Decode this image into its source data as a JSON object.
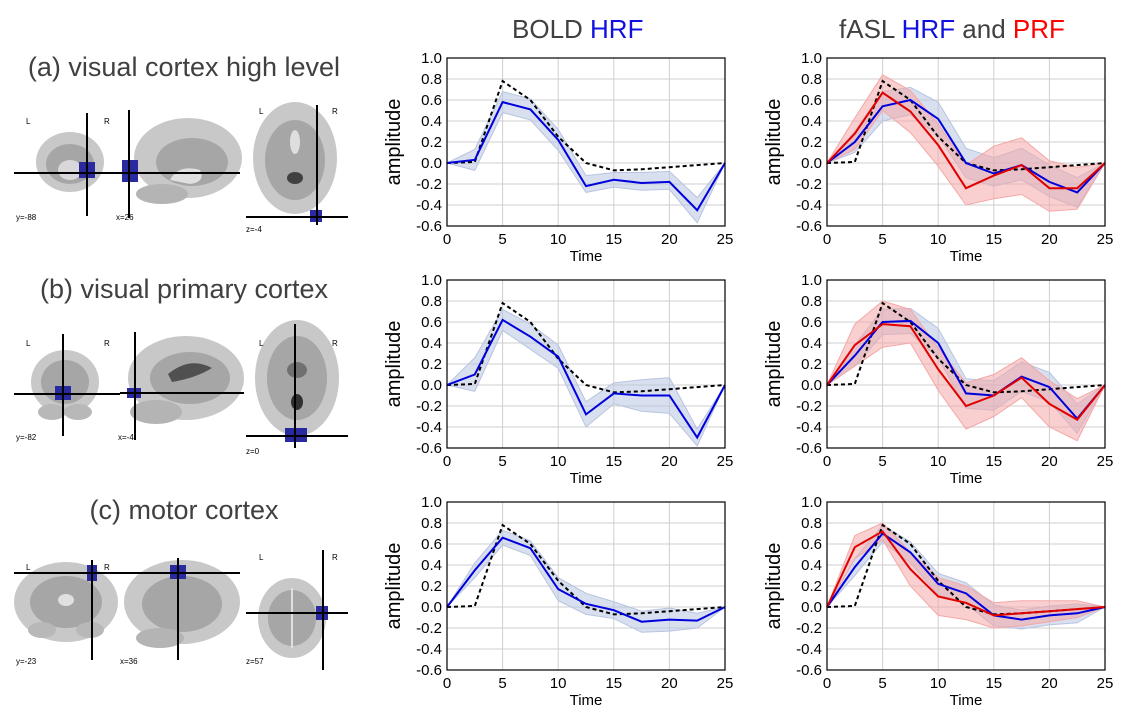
{
  "columns": {
    "bold": {
      "prefix": "BOLD ",
      "hrf": "HRF"
    },
    "fasl": {
      "prefix": "fASL ",
      "hrf": "HRF",
      "mid": " and ",
      "prf": "PRF"
    }
  },
  "colors": {
    "hrf": "#0000dd",
    "prf": "#e00000",
    "hrf_band": "#b8c4e0",
    "prf_band": "#f4a8a8",
    "canonical": "#000000",
    "roi": "#2a2aa0"
  },
  "rows": [
    {
      "label": "(a) visual cortex high level",
      "brain": {
        "view_labels": [
          "L",
          "R",
          "L",
          "R"
        ],
        "coords": [
          "y=-88",
          "x=26",
          "z=-4"
        ]
      }
    },
    {
      "label": "(b) visual primary cortex",
      "brain": {
        "view_labels": [
          "L",
          "R",
          "L",
          "R"
        ],
        "coords": [
          "y=-82",
          "x=-4",
          "z=0"
        ]
      }
    },
    {
      "label": "(c) motor cortex",
      "brain": {
        "view_labels": [
          "L",
          "R",
          "L",
          "R"
        ],
        "coords": [
          "y=-23",
          "x=36",
          "z=57"
        ]
      }
    }
  ],
  "chart_data": [
    {
      "id": "a-bold",
      "type": "line",
      "xlabel": "Time",
      "ylabel": "amplitude",
      "xlim": [
        0,
        25
      ],
      "ylim": [
        -0.6,
        1.0
      ],
      "xticks": [
        "0",
        "5",
        "10",
        "15",
        "20",
        "25"
      ],
      "yticks": [
        "-0.6",
        "-0.4",
        "-0.2",
        "0.0",
        "0.2",
        "0.4",
        "0.6",
        "0.8",
        "1.0"
      ],
      "grid": true,
      "x": [
        0,
        2.5,
        5,
        7.5,
        10,
        12.5,
        15,
        17.5,
        20,
        22.5,
        25
      ],
      "canonical": [
        0,
        0.01,
        0.78,
        0.6,
        0.25,
        0.0,
        -0.07,
        -0.06,
        -0.04,
        -0.02,
        0.0
      ],
      "series": [
        {
          "color_key": "hrf",
          "values": [
            0,
            0.03,
            0.58,
            0.51,
            0.22,
            -0.22,
            -0.16,
            -0.19,
            -0.18,
            -0.45,
            0.0
          ],
          "upper": [
            0,
            0.13,
            0.68,
            0.61,
            0.32,
            -0.12,
            -0.09,
            -0.09,
            -0.08,
            -0.33,
            0.0
          ],
          "lower": [
            0,
            -0.07,
            0.48,
            0.41,
            0.12,
            -0.28,
            -0.23,
            -0.26,
            -0.25,
            -0.57,
            0.0
          ]
        }
      ]
    },
    {
      "id": "a-fasl",
      "type": "line",
      "xlabel": "Time",
      "ylabel": "amplitude",
      "xlim": [
        0,
        25
      ],
      "ylim": [
        -0.6,
        1.0
      ],
      "xticks": [
        "0",
        "5",
        "10",
        "15",
        "20",
        "25"
      ],
      "yticks": [
        "-0.6",
        "-0.4",
        "-0.2",
        "0.0",
        "0.2",
        "0.4",
        "0.6",
        "0.8",
        "1.0"
      ],
      "grid": true,
      "x": [
        0,
        2.5,
        5,
        7.5,
        10,
        12.5,
        15,
        17.5,
        20,
        22.5,
        25
      ],
      "canonical": [
        0,
        0.01,
        0.78,
        0.6,
        0.25,
        0.0,
        -0.07,
        -0.06,
        -0.04,
        -0.02,
        0.0
      ],
      "series": [
        {
          "color_key": "hrf",
          "values": [
            0,
            0.2,
            0.54,
            0.6,
            0.42,
            0.0,
            -0.1,
            -0.02,
            -0.18,
            -0.28,
            0.0
          ],
          "upper": [
            0,
            0.3,
            0.68,
            0.72,
            0.58,
            0.14,
            0.05,
            0.14,
            -0.02,
            -0.14,
            0.0
          ],
          "lower": [
            0,
            0.1,
            0.4,
            0.46,
            0.26,
            -0.14,
            -0.22,
            -0.16,
            -0.32,
            -0.42,
            0.0
          ]
        },
        {
          "color_key": "prf",
          "values": [
            0,
            0.28,
            0.67,
            0.49,
            0.17,
            -0.24,
            -0.12,
            -0.02,
            -0.24,
            -0.24,
            0.0
          ],
          "upper": [
            0,
            0.43,
            0.84,
            0.69,
            0.37,
            -0.02,
            0.16,
            0.24,
            0.02,
            -0.04,
            0.0
          ],
          "lower": [
            0,
            0.13,
            0.5,
            0.29,
            -0.03,
            -0.4,
            -0.34,
            -0.3,
            -0.46,
            -0.44,
            0.0
          ]
        }
      ]
    },
    {
      "id": "b-bold",
      "type": "line",
      "xlabel": "Time",
      "ylabel": "amplitude",
      "xlim": [
        0,
        25
      ],
      "ylim": [
        -0.6,
        1.0
      ],
      "xticks": [
        "0",
        "5",
        "10",
        "15",
        "20",
        "25"
      ],
      "yticks": [
        "-0.6",
        "-0.4",
        "-0.2",
        "0.0",
        "0.2",
        "0.4",
        "0.6",
        "0.8",
        "1.0"
      ],
      "grid": true,
      "x": [
        0,
        2.5,
        5,
        7.5,
        10,
        12.5,
        15,
        17.5,
        20,
        22.5,
        25
      ],
      "canonical": [
        0,
        0.01,
        0.78,
        0.6,
        0.25,
        0.0,
        -0.07,
        -0.06,
        -0.04,
        -0.02,
        0.0
      ],
      "series": [
        {
          "color_key": "hrf",
          "values": [
            0,
            0.1,
            0.62,
            0.46,
            0.27,
            -0.28,
            -0.08,
            -0.1,
            -0.1,
            -0.5,
            0.0
          ],
          "upper": [
            0,
            0.26,
            0.72,
            0.58,
            0.38,
            -0.16,
            0.02,
            0.05,
            0.07,
            -0.42,
            0.0
          ],
          "lower": [
            0,
            -0.06,
            0.52,
            0.34,
            0.16,
            -0.4,
            -0.18,
            -0.25,
            -0.27,
            -0.58,
            0.0
          ]
        }
      ]
    },
    {
      "id": "b-fasl",
      "type": "line",
      "xlabel": "Time",
      "ylabel": "amplitude",
      "xlim": [
        0,
        25
      ],
      "ylim": [
        -0.6,
        1.0
      ],
      "xticks": [
        "0",
        "5",
        "10",
        "15",
        "20",
        "25"
      ],
      "yticks": [
        "-0.6",
        "-0.4",
        "-0.2",
        "0.0",
        "0.2",
        "0.4",
        "0.6",
        "0.8",
        "1.0"
      ],
      "grid": true,
      "x": [
        0,
        2.5,
        5,
        7.5,
        10,
        12.5,
        15,
        17.5,
        20,
        22.5,
        25
      ],
      "canonical": [
        0,
        0.01,
        0.78,
        0.6,
        0.25,
        0.0,
        -0.07,
        -0.06,
        -0.04,
        -0.02,
        0.0
      ],
      "series": [
        {
          "color_key": "hrf",
          "values": [
            0,
            0.28,
            0.6,
            0.61,
            0.4,
            -0.08,
            -0.1,
            0.08,
            -0.02,
            -0.32,
            0.0
          ],
          "upper": [
            0,
            0.38,
            0.72,
            0.73,
            0.54,
            0.06,
            0.04,
            0.22,
            0.12,
            -0.18,
            0.0
          ],
          "lower": [
            0,
            0.18,
            0.48,
            0.49,
            0.26,
            -0.22,
            -0.24,
            -0.06,
            -0.16,
            -0.46,
            0.0
          ]
        },
        {
          "color_key": "prf",
          "values": [
            0,
            0.38,
            0.58,
            0.56,
            0.15,
            -0.2,
            -0.1,
            0.07,
            -0.18,
            -0.33,
            0.0
          ],
          "upper": [
            0,
            0.58,
            0.8,
            0.72,
            0.35,
            0.02,
            0.1,
            0.26,
            0.04,
            -0.13,
            0.0
          ],
          "lower": [
            0,
            0.18,
            0.36,
            0.4,
            -0.05,
            -0.42,
            -0.3,
            -0.12,
            -0.4,
            -0.53,
            0.0
          ]
        }
      ]
    },
    {
      "id": "c-bold",
      "type": "line",
      "xlabel": "Time",
      "ylabel": "amplitude",
      "xlim": [
        0,
        25
      ],
      "ylim": [
        -0.6,
        1.0
      ],
      "xticks": [
        "0",
        "5",
        "10",
        "15",
        "20",
        "25"
      ],
      "yticks": [
        "-0.6",
        "-0.4",
        "-0.2",
        "0.0",
        "0.2",
        "0.4",
        "0.6",
        "0.8",
        "1.0"
      ],
      "grid": true,
      "x": [
        0,
        2.5,
        5,
        7.5,
        10,
        12.5,
        15,
        17.5,
        20,
        22.5,
        25
      ],
      "canonical": [
        0,
        0.01,
        0.78,
        0.6,
        0.25,
        0.0,
        -0.07,
        -0.06,
        -0.04,
        -0.02,
        0.0
      ],
      "series": [
        {
          "color_key": "hrf",
          "values": [
            0,
            0.35,
            0.66,
            0.56,
            0.17,
            0.03,
            -0.03,
            -0.14,
            -0.12,
            -0.13,
            0.0
          ],
          "upper": [
            0,
            0.42,
            0.73,
            0.63,
            0.28,
            0.13,
            0.05,
            -0.04,
            -0.01,
            -0.06,
            0.0
          ],
          "lower": [
            0,
            0.28,
            0.59,
            0.49,
            0.06,
            -0.07,
            -0.11,
            -0.24,
            -0.23,
            -0.2,
            0.0
          ]
        }
      ]
    },
    {
      "id": "c-fasl",
      "type": "line",
      "xlabel": "Time",
      "ylabel": "amplitude",
      "xlim": [
        0,
        25
      ],
      "ylim": [
        -0.6,
        1.0
      ],
      "xticks": [
        "0",
        "5",
        "10",
        "15",
        "20",
        "25"
      ],
      "yticks": [
        "-0.6",
        "-0.4",
        "-0.2",
        "0.0",
        "0.2",
        "0.4",
        "0.6",
        "0.8",
        "1.0"
      ],
      "grid": true,
      "x": [
        0,
        2.5,
        5,
        7.5,
        10,
        12.5,
        15,
        17.5,
        20,
        22.5,
        25
      ],
      "canonical": [
        0,
        0.01,
        0.78,
        0.6,
        0.25,
        0.0,
        -0.07,
        -0.06,
        -0.04,
        -0.02,
        0.0
      ],
      "series": [
        {
          "color_key": "hrf",
          "values": [
            0,
            0.38,
            0.7,
            0.52,
            0.22,
            0.13,
            -0.08,
            -0.12,
            -0.08,
            -0.06,
            0.0
          ],
          "upper": [
            0,
            0.46,
            0.78,
            0.62,
            0.32,
            0.23,
            0.02,
            -0.03,
            0.01,
            0.03,
            0.0
          ],
          "lower": [
            0,
            0.3,
            0.62,
            0.42,
            0.12,
            0.03,
            -0.18,
            -0.21,
            -0.17,
            -0.15,
            0.0
          ]
        },
        {
          "color_key": "prf",
          "values": [
            0,
            0.57,
            0.72,
            0.36,
            0.1,
            0.04,
            -0.08,
            -0.06,
            -0.04,
            -0.02,
            0.0
          ],
          "upper": [
            0,
            0.68,
            0.8,
            0.52,
            0.28,
            0.2,
            0.04,
            0.06,
            0.06,
            0.06,
            0.0
          ],
          "lower": [
            0,
            0.46,
            0.64,
            0.2,
            -0.08,
            -0.12,
            -0.2,
            -0.18,
            -0.14,
            -0.1,
            0.0
          ]
        }
      ]
    }
  ]
}
